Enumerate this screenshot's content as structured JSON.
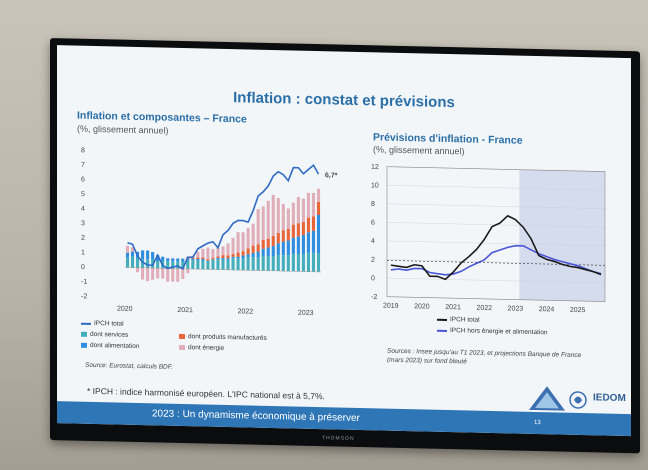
{
  "slide": {
    "title": "Inflation : constat et prévisions",
    "footnote": "* IPCH : indice harmonisé européen. L'IPC national est à 5,7%.",
    "footer": "2023 : Un dynamisme économique à préserver",
    "page_number": "13",
    "tv_brand": "THOMSON",
    "logo_text": "IEDOM"
  },
  "left_chart": {
    "title": "Inflation et composantes – France",
    "subtitle": "(%, glissement annuel)",
    "source": "Source: Eurostat, calculs BDF.",
    "last_value_label": "6,7*",
    "legend": [
      "IPCH total",
      "dont services",
      "dont produits manufacturés",
      "dont alimentation",
      "dont énergie"
    ],
    "colors": {
      "total": "#2f6bc4",
      "services": "#45aebd",
      "manufactures": "#e8663a",
      "alimentation": "#2f8ee0",
      "energie": "#e0aeb9"
    }
  },
  "right_chart": {
    "title": "Prévisions d'inflation - France",
    "subtitle": "(%, glissement annuel)",
    "legend": [
      "IPCH total",
      "IPCH hors énergie et alimentation"
    ],
    "source": "Sources : Insee jusqu'au T1 2023, et projections Banque de France (mars 2023) sur fond bleuté",
    "colors": {
      "total": "#1a1a1a",
      "core": "#4a56d6",
      "forecast_bg": "#d5dcee"
    }
  },
  "chart_data": [
    {
      "type": "bar",
      "title": "Inflation et composantes – France",
      "subtitle": "(%, glissement annuel)",
      "ylim": [
        -2,
        8
      ],
      "yticks": [
        -2,
        -1,
        0,
        1,
        2,
        3,
        4,
        5,
        6,
        7,
        8
      ],
      "xticks": [
        "2020",
        "2021",
        "2022",
        "2023"
      ],
      "annotation": "6,7*",
      "x": [
        "2020-01",
        "2020-02",
        "2020-03",
        "2020-04",
        "2020-05",
        "2020-06",
        "2020-07",
        "2020-08",
        "2020-09",
        "2020-10",
        "2020-11",
        "2020-12",
        "2021-01",
        "2021-02",
        "2021-03",
        "2021-04",
        "2021-05",
        "2021-06",
        "2021-07",
        "2021-08",
        "2021-09",
        "2021-10",
        "2021-11",
        "2021-12",
        "2022-01",
        "2022-02",
        "2022-03",
        "2022-04",
        "2022-05",
        "2022-06",
        "2022-07",
        "2022-08",
        "2022-09",
        "2022-10",
        "2022-11",
        "2022-12",
        "2023-01",
        "2023-02",
        "2023-03"
      ],
      "series": [
        {
          "name": "dont services",
          "values": [
            0.7,
            0.8,
            0.7,
            0.6,
            0.6,
            0.6,
            0.5,
            0.5,
            0.5,
            0.5,
            0.5,
            0.5,
            0.6,
            0.6,
            0.6,
            0.6,
            0.6,
            0.7,
            0.7,
            0.7,
            0.7,
            0.8,
            0.8,
            0.8,
            0.9,
            0.9,
            0.9,
            1.0,
            1.0,
            1.0,
            1.1,
            1.1,
            1.1,
            1.2,
            1.2,
            1.2,
            1.3,
            1.3,
            1.3
          ]
        },
        {
          "name": "dont alimentation",
          "values": [
            0.3,
            0.3,
            0.4,
            0.6,
            0.6,
            0.5,
            0.4,
            0.3,
            0.2,
            0.2,
            0.2,
            0.2,
            0.1,
            0.1,
            0.1,
            0.1,
            0.0,
            0.0,
            0.1,
            0.1,
            0.1,
            0.1,
            0.1,
            0.2,
            0.2,
            0.3,
            0.4,
            0.5,
            0.6,
            0.7,
            0.8,
            0.9,
            1.0,
            1.1,
            1.2,
            1.3,
            1.4,
            1.5,
            2.6
          ]
        },
        {
          "name": "dont produits manufacturés",
          "values": [
            0.0,
            0.0,
            0.0,
            0.0,
            0.0,
            0.0,
            0.0,
            0.0,
            0.0,
            0.0,
            0.0,
            0.0,
            0.1,
            0.1,
            0.1,
            0.1,
            0.1,
            0.1,
            0.1,
            0.2,
            0.2,
            0.2,
            0.3,
            0.3,
            0.4,
            0.5,
            0.5,
            0.6,
            0.6,
            0.7,
            0.7,
            0.8,
            0.8,
            0.9,
            0.9,
            0.9,
            1.0,
            1.0,
            0.9
          ]
        },
        {
          "name": "dont énergie",
          "values": [
            0.5,
            0.3,
            -0.3,
            -0.8,
            -0.9,
            -0.8,
            -0.7,
            -0.7,
            -0.9,
            -0.9,
            -0.9,
            -0.7,
            -0.3,
            0.1,
            0.4,
            0.6,
            0.8,
            0.6,
            0.6,
            0.6,
            0.8,
            1.1,
            1.4,
            1.3,
            1.4,
            1.5,
            2.4,
            2.3,
            2.6,
            2.8,
            2.4,
            1.8,
            1.4,
            1.5,
            1.8,
            1.6,
            1.7,
            1.6,
            0.9
          ]
        },
        {
          "name": "IPCH total",
          "values": [
            1.7,
            1.6,
            0.8,
            0.4,
            0.2,
            0.2,
            0.9,
            0.2,
            0.0,
            0.1,
            0.2,
            0.0,
            0.8,
            0.8,
            1.4,
            1.6,
            1.8,
            1.9,
            1.5,
            2.4,
            2.7,
            3.2,
            3.4,
            3.4,
            3.3,
            4.1,
            5.1,
            5.4,
            5.8,
            6.5,
            6.8,
            6.6,
            6.2,
            7.1,
            7.1,
            6.7,
            7.0,
            7.3,
            6.7
          ]
        }
      ]
    },
    {
      "type": "line",
      "title": "Prévisions d'inflation - France",
      "subtitle": "(%, glissement annuel)",
      "ylim": [
        -2,
        12
      ],
      "yticks": [
        -2,
        0,
        2,
        4,
        6,
        8,
        10,
        12
      ],
      "xticks": [
        "2019",
        "2020",
        "2021",
        "2022",
        "2023",
        "2024",
        "2025"
      ],
      "forecast_region_start": "2023-Q2",
      "reference_line": 1.9,
      "x": [
        "2019-Q1",
        "2019-Q2",
        "2019-Q3",
        "2019-Q4",
        "2020-Q1",
        "2020-Q2",
        "2020-Q3",
        "2020-Q4",
        "2021-Q1",
        "2021-Q2",
        "2021-Q3",
        "2021-Q4",
        "2022-Q1",
        "2022-Q2",
        "2022-Q3",
        "2022-Q4",
        "2023-Q1",
        "2023-Q2",
        "2023-Q3",
        "2023-Q4",
        "2024-Q1",
        "2024-Q2",
        "2024-Q3",
        "2024-Q4",
        "2025-Q1",
        "2025-Q2",
        "2025-Q3",
        "2025-Q4"
      ],
      "series": [
        {
          "name": "IPCH total",
          "values": [
            1.4,
            1.3,
            1.2,
            1.5,
            1.4,
            0.3,
            0.3,
            0.0,
            0.8,
            1.8,
            2.5,
            3.3,
            4.4,
            5.8,
            6.2,
            7.0,
            6.6,
            5.8,
            4.6,
            2.8,
            2.4,
            2.2,
            1.9,
            1.7,
            1.6,
            1.4,
            1.2,
            0.9
          ]
        },
        {
          "name": "IPCH hors énergie et alimentation",
          "values": [
            0.9,
            1.0,
            0.9,
            1.1,
            1.1,
            0.7,
            0.6,
            0.5,
            0.6,
            0.9,
            1.4,
            1.8,
            2.2,
            3.0,
            3.3,
            3.6,
            3.8,
            3.8,
            3.4,
            3.0,
            2.7,
            2.4,
            2.2,
            2.0,
            1.8,
            1.5,
            1.2,
            1.0
          ]
        }
      ]
    }
  ]
}
